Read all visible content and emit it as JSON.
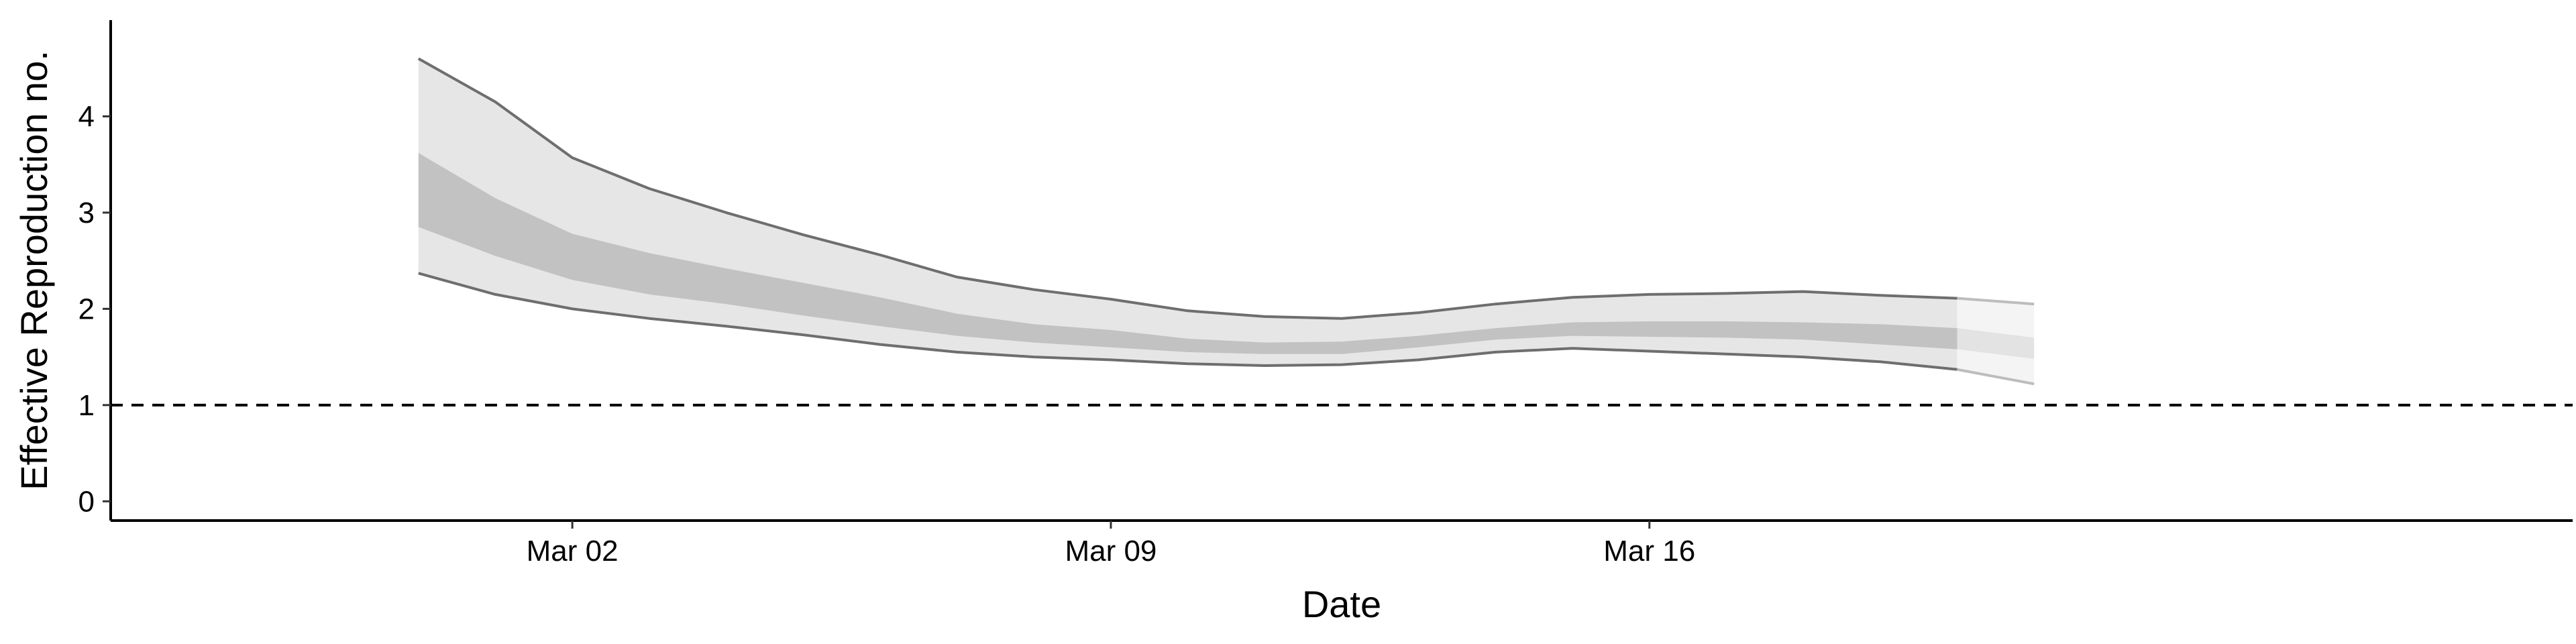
{
  "chart_data": {
    "type": "area",
    "xlabel": "Date",
    "ylabel": "Effective Reproduction no.",
    "x_axis_type": "date",
    "xlim": [
      "2020-02-25",
      "2020-03-28"
    ],
    "ylim": [
      -0.2,
      5.0
    ],
    "x_ticks": [
      {
        "date": "2020-03-02",
        "label": "Mar 02"
      },
      {
        "date": "2020-03-09",
        "label": "Mar 09"
      },
      {
        "date": "2020-03-16",
        "label": "Mar 16"
      }
    ],
    "y_ticks": [
      0,
      1,
      2,
      3,
      4
    ],
    "grid": false,
    "legend": "none",
    "reference_line": {
      "y": 1,
      "style": "dashed",
      "color": "#000000"
    },
    "colors": {
      "outer_band": "#e6e6e6",
      "inner_band": "#c2c2c2",
      "outline": "#6e6e6e",
      "projection_outer_band": "#f4f4f4",
      "projection_inner_band": "#e3e3e3",
      "projection_outline": "#bdbdbd"
    },
    "series": [
      {
        "points": [
          {
            "x": "2020-02-29",
            "lower_90": 2.37,
            "lower_50": 2.85,
            "upper_50": 3.62,
            "upper_90": 4.6
          },
          {
            "x": "2020-03-01",
            "lower_90": 2.15,
            "lower_50": 2.55,
            "upper_50": 3.15,
            "upper_90": 4.15
          },
          {
            "x": "2020-03-02",
            "lower_90": 2.0,
            "lower_50": 2.3,
            "upper_50": 2.78,
            "upper_90": 3.57
          },
          {
            "x": "2020-03-03",
            "lower_90": 1.9,
            "lower_50": 2.15,
            "upper_50": 2.58,
            "upper_90": 3.25
          },
          {
            "x": "2020-03-04",
            "lower_90": 1.82,
            "lower_50": 2.05,
            "upper_50": 2.42,
            "upper_90": 3.0
          },
          {
            "x": "2020-03-05",
            "lower_90": 1.73,
            "lower_50": 1.93,
            "upper_50": 2.27,
            "upper_90": 2.77
          },
          {
            "x": "2020-03-06",
            "lower_90": 1.63,
            "lower_50": 1.82,
            "upper_50": 2.12,
            "upper_90": 2.56
          },
          {
            "x": "2020-03-07",
            "lower_90": 1.55,
            "lower_50": 1.72,
            "upper_50": 1.95,
            "upper_90": 2.33
          },
          {
            "x": "2020-03-08",
            "lower_90": 1.5,
            "lower_50": 1.65,
            "upper_50": 1.84,
            "upper_90": 2.2
          },
          {
            "x": "2020-03-09",
            "lower_90": 1.47,
            "lower_50": 1.6,
            "upper_50": 1.78,
            "upper_90": 2.1
          },
          {
            "x": "2020-03-10",
            "lower_90": 1.43,
            "lower_50": 1.55,
            "upper_50": 1.69,
            "upper_90": 1.98
          },
          {
            "x": "2020-03-11",
            "lower_90": 1.41,
            "lower_50": 1.53,
            "upper_50": 1.65,
            "upper_90": 1.92
          },
          {
            "x": "2020-03-12",
            "lower_90": 1.42,
            "lower_50": 1.53,
            "upper_50": 1.66,
            "upper_90": 1.9
          },
          {
            "x": "2020-03-13",
            "lower_90": 1.47,
            "lower_50": 1.6,
            "upper_50": 1.72,
            "upper_90": 1.96
          },
          {
            "x": "2020-03-14",
            "lower_90": 1.55,
            "lower_50": 1.68,
            "upper_50": 1.8,
            "upper_90": 2.05
          },
          {
            "x": "2020-03-15",
            "lower_90": 1.59,
            "lower_50": 1.72,
            "upper_50": 1.86,
            "upper_90": 2.12
          },
          {
            "x": "2020-03-16",
            "lower_90": 1.56,
            "lower_50": 1.71,
            "upper_50": 1.87,
            "upper_90": 2.15
          },
          {
            "x": "2020-03-17",
            "lower_90": 1.53,
            "lower_50": 1.7,
            "upper_50": 1.87,
            "upper_90": 2.16
          },
          {
            "x": "2020-03-18",
            "lower_90": 1.5,
            "lower_50": 1.68,
            "upper_50": 1.86,
            "upper_90": 2.18
          },
          {
            "x": "2020-03-19",
            "lower_90": 1.45,
            "lower_50": 1.63,
            "upper_50": 1.84,
            "upper_90": 2.14
          },
          {
            "x": "2020-03-20",
            "lower_90": 1.37,
            "lower_50": 1.58,
            "upper_50": 1.8,
            "upper_90": 2.11
          },
          {
            "x": "2020-03-21",
            "lower_90": 1.22,
            "lower_50": 1.48,
            "upper_50": 1.7,
            "upper_90": 2.05
          }
        ],
        "projection_from": "2020-03-20"
      }
    ]
  }
}
